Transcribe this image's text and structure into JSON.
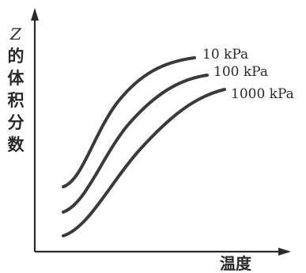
{
  "chart_data": {
    "type": "line",
    "title": "",
    "ylabel": "Z的体积分数",
    "ylabel_chars": [
      "Z",
      "的",
      "体",
      "积",
      "分",
      "数"
    ],
    "xlabel": "温度",
    "x_ticks": [],
    "y_ticks": [],
    "grid": false,
    "series": [
      {
        "name": "10 kPa",
        "shape": "sigmoid",
        "relative_level": "highest"
      },
      {
        "name": "100 kPa",
        "shape": "sigmoid",
        "relative_level": "middle"
      },
      {
        "name": "1000 kPa",
        "shape": "sigmoid",
        "relative_level": "lowest"
      }
    ],
    "colors": {
      "axis": "#2a2a2a",
      "line": "#3a3a3a",
      "background": "#ffffff"
    }
  }
}
